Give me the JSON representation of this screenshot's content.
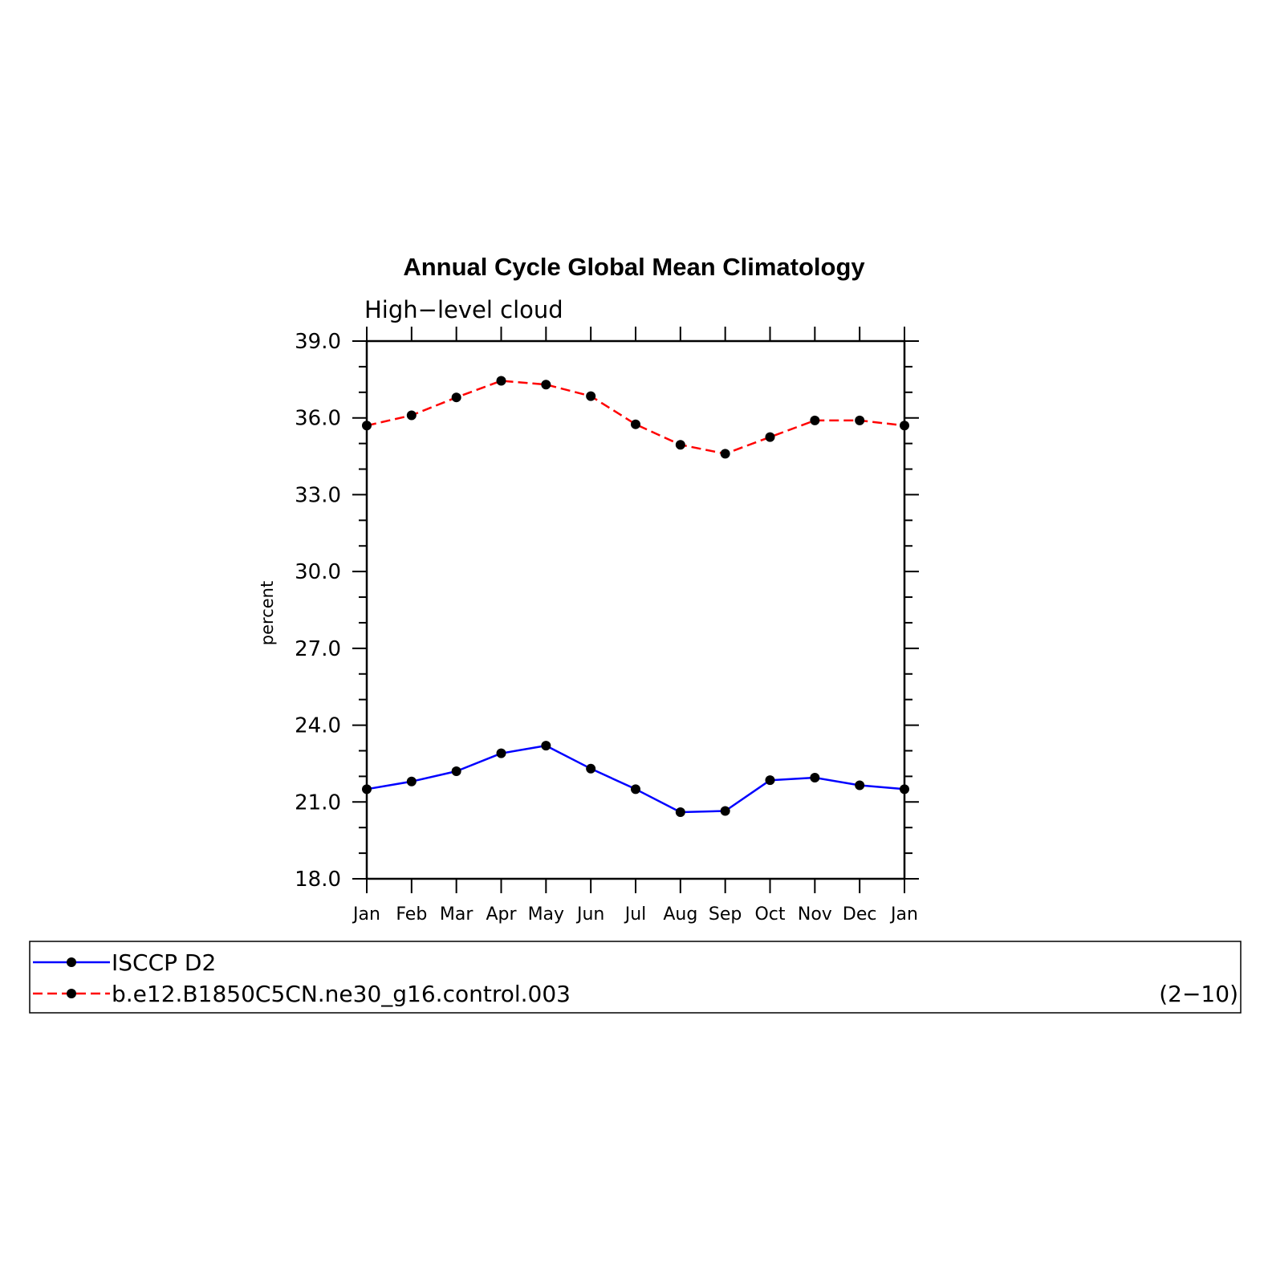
{
  "chart_data": {
    "type": "line",
    "title": "Annual Cycle Global Mean Climatology",
    "subtitle": "High−level cloud",
    "xlabel": "",
    "ylabel": "percent",
    "categories": [
      "Jan",
      "Feb",
      "Mar",
      "Apr",
      "May",
      "Jun",
      "Jul",
      "Aug",
      "Sep",
      "Oct",
      "Nov",
      "Dec",
      "Jan"
    ],
    "ylim": [
      18.0,
      39.0
    ],
    "yticks": [
      "18.0",
      "21.0",
      "24.0",
      "27.0",
      "30.0",
      "33.0",
      "36.0",
      "39.0"
    ],
    "series": [
      {
        "name": "ISCCP D2",
        "color": "#0000ff",
        "style": "solid",
        "values": [
          21.5,
          21.8,
          22.2,
          22.9,
          23.2,
          22.3,
          21.5,
          20.6,
          20.65,
          21.85,
          21.95,
          21.65,
          21.5
        ]
      },
      {
        "name": "b.e12.B1850C5CN.ne30_g16.control.003",
        "color": "#ff0000",
        "style": "dashed",
        "values": [
          35.7,
          36.1,
          36.8,
          37.45,
          37.3,
          36.85,
          35.75,
          34.95,
          34.6,
          35.25,
          35.9,
          35.9,
          35.7
        ]
      }
    ],
    "legend": {
      "placement": "bottom",
      "note": "(2−10)"
    },
    "grid": false,
    "marker_color": "#000000"
  }
}
